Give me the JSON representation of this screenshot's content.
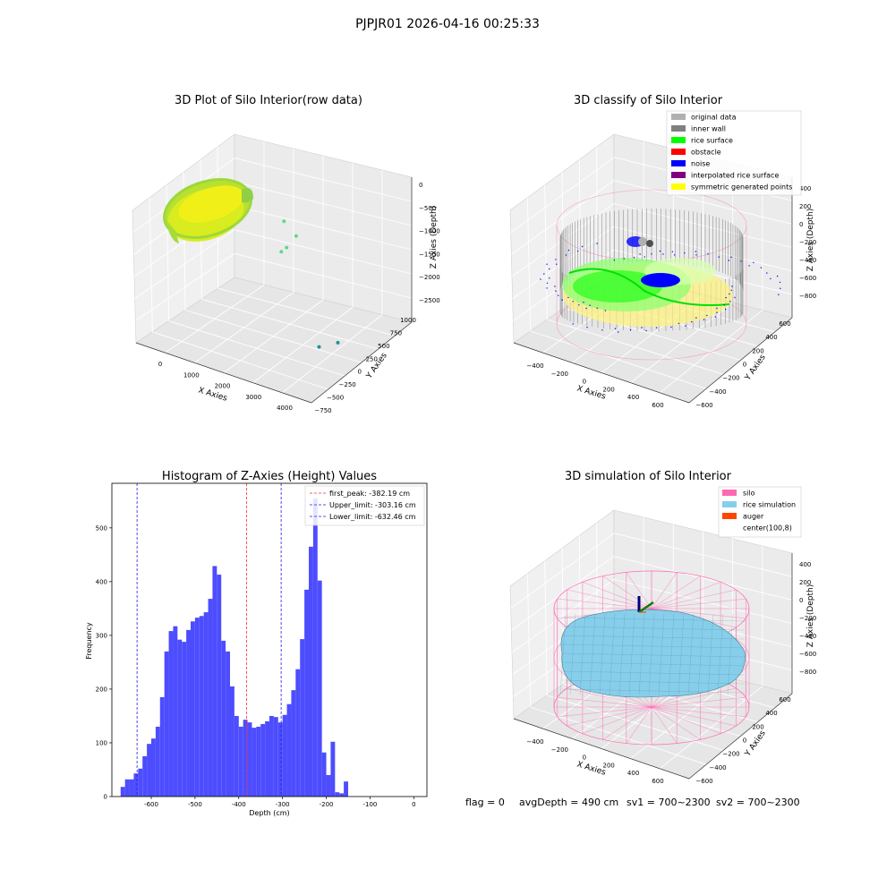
{
  "suptitle": "PJPJR01 2026-04-16 00:25:33",
  "footer": {
    "flag": "flag = 0",
    "avg_depth": "avgDepth = 490 cm",
    "sv1": "sv1 = 700~2300",
    "sv2": "sv2 = 700~2300"
  },
  "colors": {
    "hist_bar": "#4d4dff",
    "first_peak_line": "#ff2a2a",
    "limit_line": "#1f1fe0",
    "silo": "#ff69b4",
    "rice_simulation": "#87ceeb",
    "auger": "#ff4500",
    "rice_surface": "#00ff00",
    "noise": "#0000ff",
    "inner_wall": "#808080",
    "original_data": "#b0b0b0",
    "obstacle": "#ff0000",
    "interpolated_rice_surface": "#800080",
    "symmetric_generated_points": "#ffff00"
  },
  "chart_data": [
    {
      "type": "scatter",
      "projection": "3d",
      "title": "3D Plot of Silo Interior(row data)",
      "xlabel": "X Axies",
      "ylabel": "Y Axies",
      "zlabel": "Z Axies (Depth)",
      "x_ticks": [
        "0",
        "1000",
        "2000",
        "3000",
        "4000"
      ],
      "y_ticks": [
        "−750",
        "−500",
        "−250",
        "0",
        "250",
        "500",
        "750",
        "1000"
      ],
      "z_ticks": [
        "0",
        "−500",
        "−1000",
        "−1500",
        "−2000",
        "−2500"
      ],
      "xlim": [
        -600,
        4600
      ],
      "ylim": [
        -750,
        1000
      ],
      "zlim": [
        -2750,
        100
      ],
      "outlier_points": [
        {
          "x": 2200,
          "y": 550,
          "z": -700
        },
        {
          "x": 2500,
          "y": 300,
          "z": -1050
        },
        {
          "x": 2600,
          "y": 500,
          "z": -900
        },
        {
          "x": 2300,
          "y": 350,
          "z": -1150
        },
        {
          "x": 3800,
          "y": -100,
          "z": -2500
        },
        {
          "x": 4300,
          "y": -50,
          "z": -2400
        }
      ]
    },
    {
      "type": "scatter",
      "projection": "3d",
      "title": "3D classify of Silo Interior",
      "xlabel": "X Axies",
      "ylabel": "Y Axies",
      "zlabel": "Z Axies (Depth)",
      "x_ticks": [
        "−400",
        "−200",
        "0",
        "200",
        "400",
        "600"
      ],
      "y_ticks": [
        "−600",
        "−400",
        "−200",
        "0",
        "200",
        "400",
        "600"
      ],
      "z_ticks": [
        "400",
        "200",
        "0",
        "−200",
        "−400",
        "−600",
        "−800"
      ],
      "legend_position": "top-right",
      "legend": [
        {
          "label": "original data",
          "color": "#b0b0b0"
        },
        {
          "label": "inner wall",
          "color": "#808080"
        },
        {
          "label": "rice surface",
          "color": "#00ff00"
        },
        {
          "label": "obstacle",
          "color": "#ff0000"
        },
        {
          "label": "noise",
          "color": "#0000ff"
        },
        {
          "label": "interpolated rice surface",
          "color": "#800080"
        },
        {
          "label": "symmetric generated points",
          "color": "#ffff00"
        }
      ]
    },
    {
      "type": "bar",
      "title": "Histogram of Z-Axies (Height) Values",
      "xlabel": "Depth (cm)",
      "ylabel": "Frequency",
      "xlim": [
        -690,
        30
      ],
      "ylim": [
        0,
        583
      ],
      "x_ticks": [
        -600,
        -500,
        -400,
        -300,
        -200,
        -100,
        0
      ],
      "y_ticks": [
        0,
        100,
        200,
        300,
        400,
        500
      ],
      "bin_start": -670,
      "bin_width": 10,
      "values": [
        18,
        32,
        32,
        43,
        52,
        75,
        98,
        108,
        130,
        185,
        270,
        308,
        317,
        292,
        288,
        310,
        326,
        333,
        336,
        343,
        368,
        429,
        413,
        290,
        270,
        205,
        150,
        130,
        143,
        138,
        128,
        130,
        135,
        140,
        150,
        148,
        138,
        152,
        172,
        198,
        237,
        293,
        385,
        465,
        555,
        402,
        82,
        40,
        102,
        8,
        6,
        28
      ],
      "vlines": [
        {
          "x": -382.19,
          "label": "first_peak: -382.19 cm",
          "color": "#ff2a2a"
        },
        {
          "x": -303.16,
          "label": "Upper_limit: -303.16 cm",
          "color": "#1f1fe0"
        },
        {
          "x": -632.46,
          "label": "Lower_limit: -632.46 cm",
          "color": "#1f1fe0"
        }
      ],
      "legend_position": "top-right"
    },
    {
      "type": "surface",
      "projection": "3d",
      "title": "3D simulation of Silo Interior",
      "xlabel": "X Axies",
      "ylabel": "Y Axies",
      "zlabel": "Z Axies (Depth)",
      "x_ticks": [
        "−400",
        "−200",
        "0",
        "200",
        "400",
        "600"
      ],
      "y_ticks": [
        "−600",
        "−400",
        "−200",
        "0",
        "200",
        "400",
        "600"
      ],
      "z_ticks": [
        "400",
        "200",
        "0",
        "−200",
        "−400",
        "−600",
        "−800"
      ],
      "legend_position": "top-right",
      "legend": [
        {
          "label": "silo",
          "color": "#ff69b4"
        },
        {
          "label": "rice simulation",
          "color": "#87ceeb"
        },
        {
          "label": "auger",
          "color": "#ff4500"
        },
        {
          "label": "center(100,8)",
          "color": ""
        }
      ]
    }
  ]
}
